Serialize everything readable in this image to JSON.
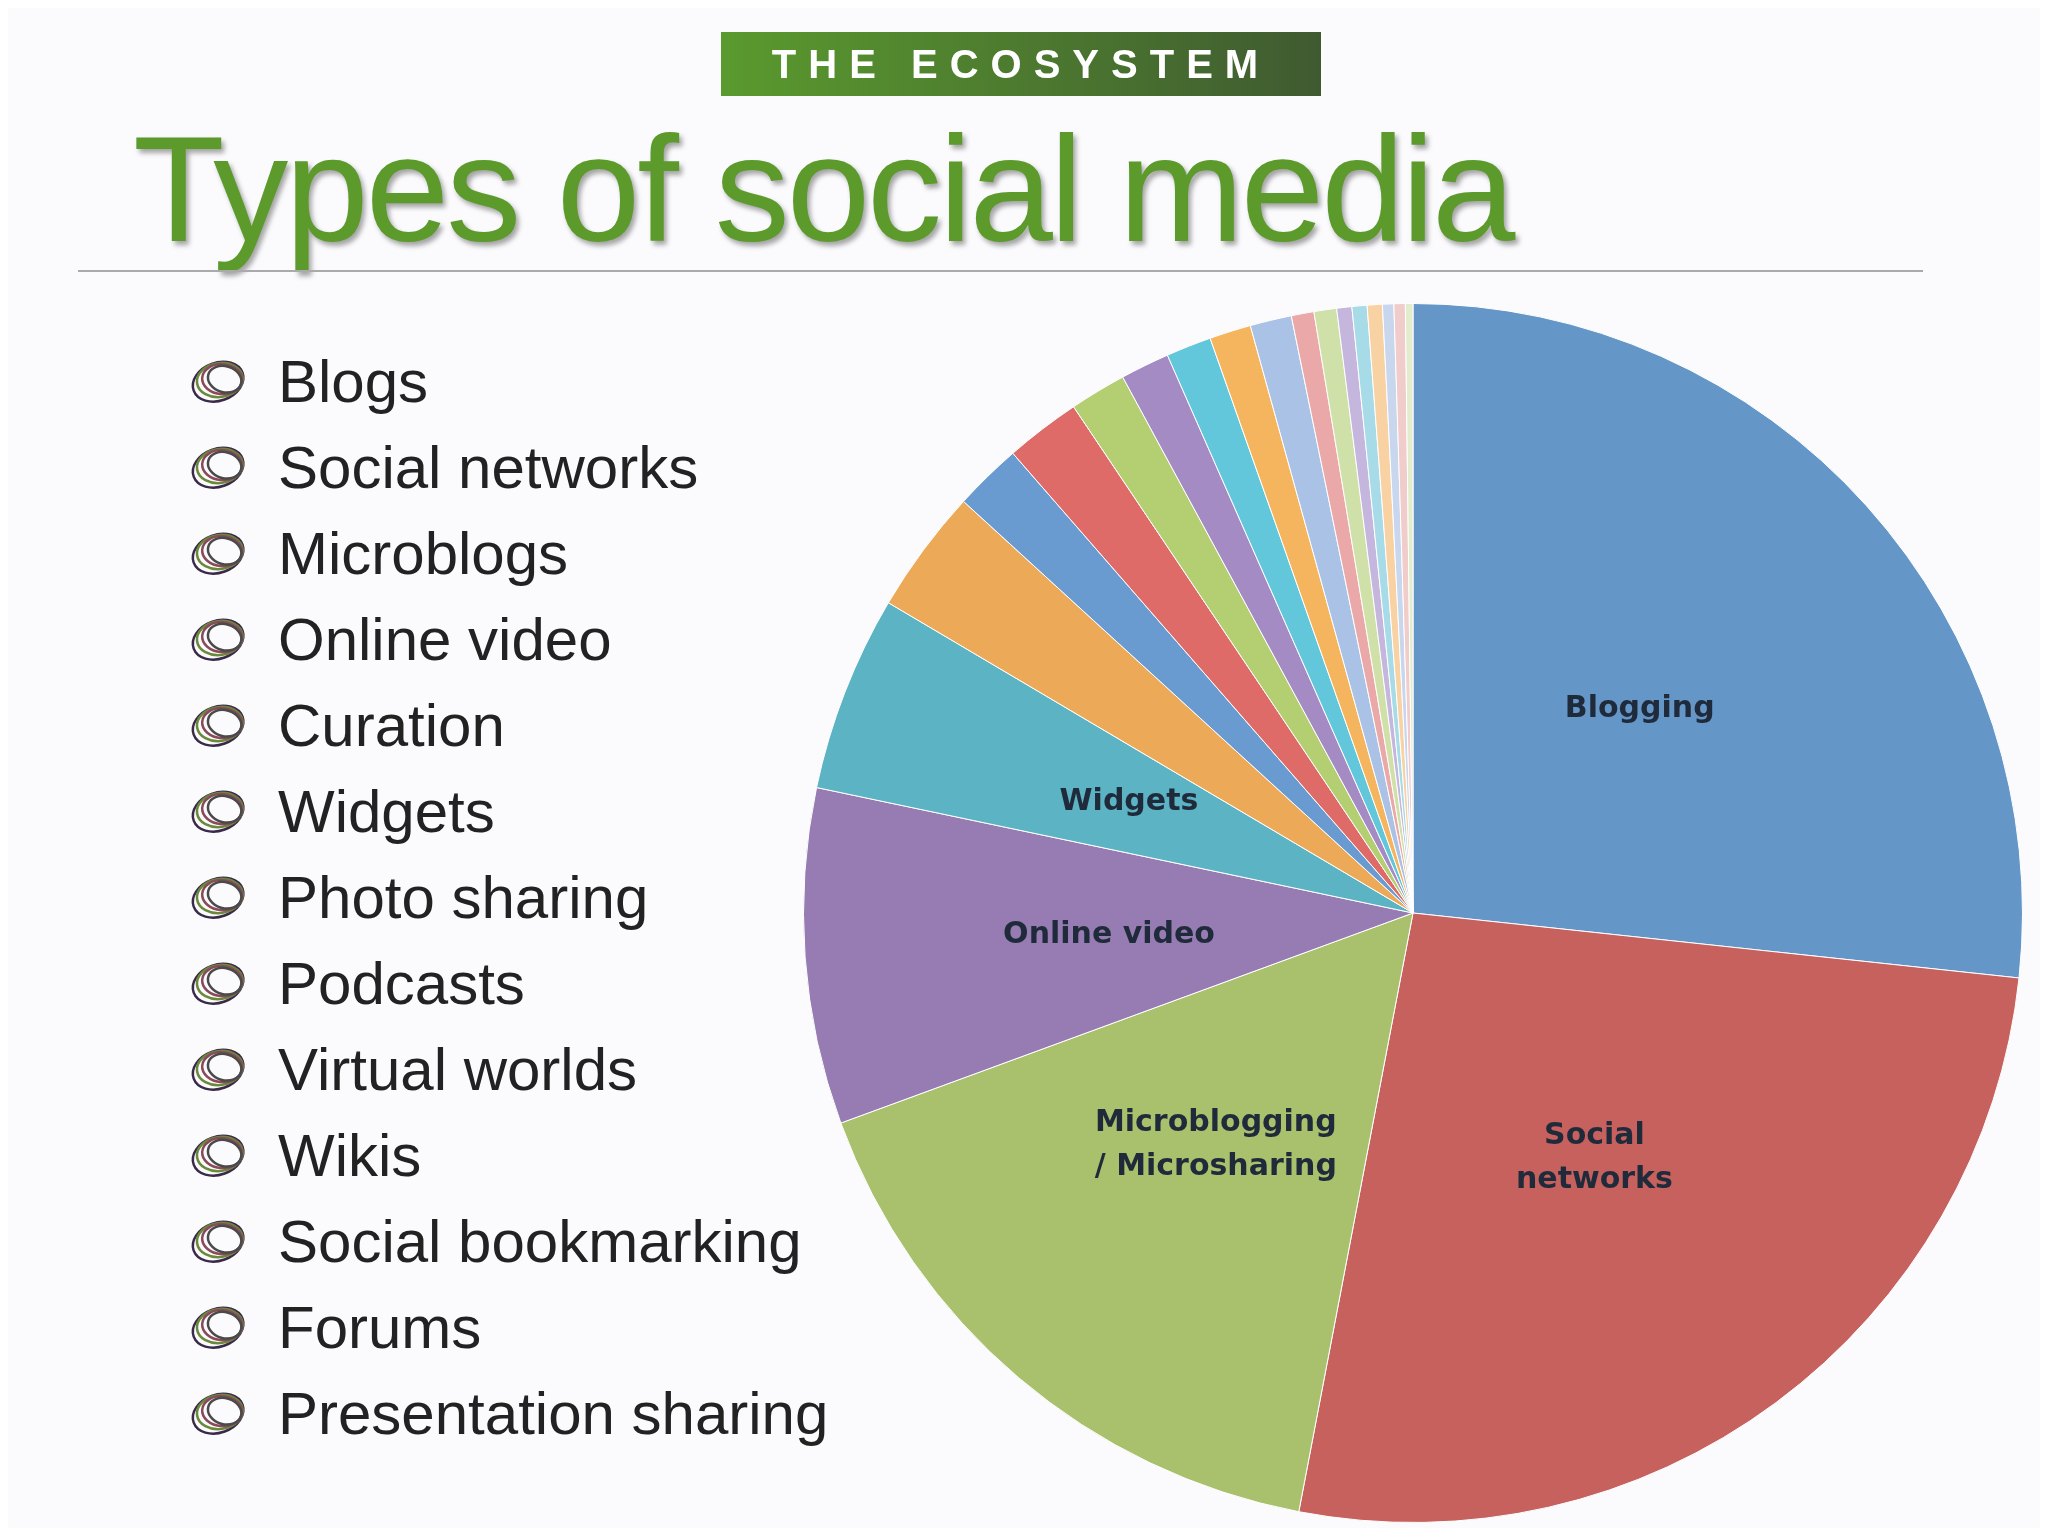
{
  "chart_data": {
    "type": "pie",
    "title": "Types of social media",
    "subtitle": "THE ECOSYSTEM",
    "annotations": [
      "Blogs",
      "Social networks",
      "Microblogs",
      "Online video",
      "Curation",
      "Widgets",
      "Photo sharing",
      "Podcasts",
      "Virtual worlds",
      "Wikis",
      "Social bookmarking",
      "Forums",
      "Presentation sharing"
    ],
    "categories": [
      "Blogging",
      "Social networks",
      "Microblogging / Microsharing",
      "Online video",
      "Widgets",
      null,
      null,
      null,
      null,
      null,
      null,
      null,
      null,
      null,
      null,
      null,
      null,
      null,
      null,
      null,
      null
    ],
    "values": [
      26.7,
      26.3,
      16.4,
      8.9,
      5.2,
      3.3,
      1.8,
      2,
      1.5,
      1.3,
      1.2,
      1.1,
      1.1,
      0.6,
      0.6,
      0.4,
      0.4,
      0.4,
      0.3,
      0.3,
      0.2
    ],
    "colors": [
      "#6596c8",
      "#c6615e",
      "#a9c06c",
      "#967cb2",
      "#5bb3c4",
      "#ecaa58",
      "#6a9bd0",
      "#de6b68",
      "#b3cf72",
      "#a58bc4",
      "#62c7db",
      "#f5b45e",
      "#a9c2e6",
      "#eaa9a8",
      "#cfe0a8",
      "#c4b6dd",
      "#a8dbe8",
      "#f9d2a3",
      "#c9d7ee",
      "#f0cccb",
      "#e3eccc"
    ],
    "legend": false
  }
}
